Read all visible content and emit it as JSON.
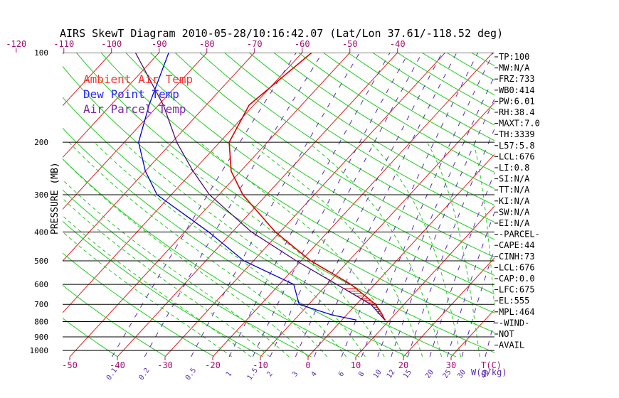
{
  "chart_data": {
    "type": "line",
    "title": "AIRS SkewT Diagram 2010-05-28/10:16:42.07 (Lat/Lon 37.61/-118.52 deg)",
    "ylabel": "PRESSURE (MB)",
    "xlabel_bottom": "T(C)",
    "mixing_ratio_label": "W(g/kg)",
    "y_log_scale": true,
    "pressure_range": [
      1050,
      100
    ],
    "bottom_temp_range": [
      -50,
      40
    ],
    "pressure_ticks": [
      100,
      200,
      300,
      400,
      500,
      600,
      700,
      800,
      900,
      1000
    ],
    "top_ticks": [
      "-120",
      "-110",
      "-100",
      "-90",
      "-80",
      "-70",
      "-60",
      "-50",
      "-40"
    ],
    "bottom_ticks": [
      "-50",
      "-40",
      "-30",
      "-20",
      "-10",
      "0",
      "10",
      "20",
      "30"
    ],
    "mixing_ratio_ticks": [
      "0.1",
      "0.2",
      "0.5",
      "1",
      "1.5",
      "2",
      "3",
      "4",
      "6",
      "8",
      "10",
      "12",
      "15",
      "20",
      "25",
      "30",
      "40"
    ],
    "legend": [
      {
        "name": "Ambient Air Temp",
        "color": "#ff3030"
      },
      {
        "name": "Dew Point Temp",
        "color": "#2828ff"
      },
      {
        "name": "Air Parcel Temp",
        "color": "#7a28a8"
      }
    ],
    "series": [
      {
        "name": "Ambient Air Temp",
        "color": "#dd0000",
        "points": [
          [
            100,
            -58
          ],
          [
            150,
            -61
          ],
          [
            200,
            -58
          ],
          [
            250,
            -52
          ],
          [
            300,
            -45
          ],
          [
            400,
            -31
          ],
          [
            500,
            -18
          ],
          [
            600,
            -5
          ],
          [
            700,
            4
          ],
          [
            750,
            7
          ],
          [
            790,
            9
          ]
        ]
      },
      {
        "name": "Dew Point Temp",
        "color": "#0000cc",
        "points": [
          [
            100,
            -88
          ],
          [
            150,
            -82
          ],
          [
            200,
            -77
          ],
          [
            250,
            -70
          ],
          [
            300,
            -63
          ],
          [
            400,
            -45
          ],
          [
            500,
            -32
          ],
          [
            600,
            -17
          ],
          [
            700,
            -12
          ],
          [
            760,
            -3
          ],
          [
            790,
            3
          ]
        ]
      },
      {
        "name": "Air Parcel Temp",
        "color": "#4a1070",
        "points": [
          [
            100,
            -95
          ],
          [
            150,
            -79
          ],
          [
            200,
            -69
          ],
          [
            250,
            -60
          ],
          [
            300,
            -52
          ],
          [
            400,
            -36
          ],
          [
            500,
            -21
          ],
          [
            600,
            -8
          ],
          [
            700,
            3
          ],
          [
            790,
            9
          ]
        ]
      }
    ],
    "side_panel": [
      "TP:100",
      "MW:N/A",
      "FRZ:733",
      "WB0:414",
      "PW:6.01",
      "RH:38.4",
      "MAXT:7.0",
      "TH:3339",
      "L57:5.8",
      "LCL:676",
      "LI:0.8",
      "SI:N/A",
      "TT:N/A",
      "KI:N/A",
      "SW:N/A",
      "EI:N/A",
      "-PARCEL-",
      "CAPE:44",
      "CINH:73",
      "LCL:676",
      "CAP:0.0",
      "LFC:675",
      "EL:555",
      "MPL:464",
      "-WIND-",
      "NOT",
      "AVAIL"
    ],
    "colors": {
      "isotherm": "#dd2020",
      "dry_adiabat": "#22cc22",
      "moist_adiabat": "#22cc22",
      "mixing_ratio": "#5a2ab0",
      "isobar": "#000000"
    }
  }
}
